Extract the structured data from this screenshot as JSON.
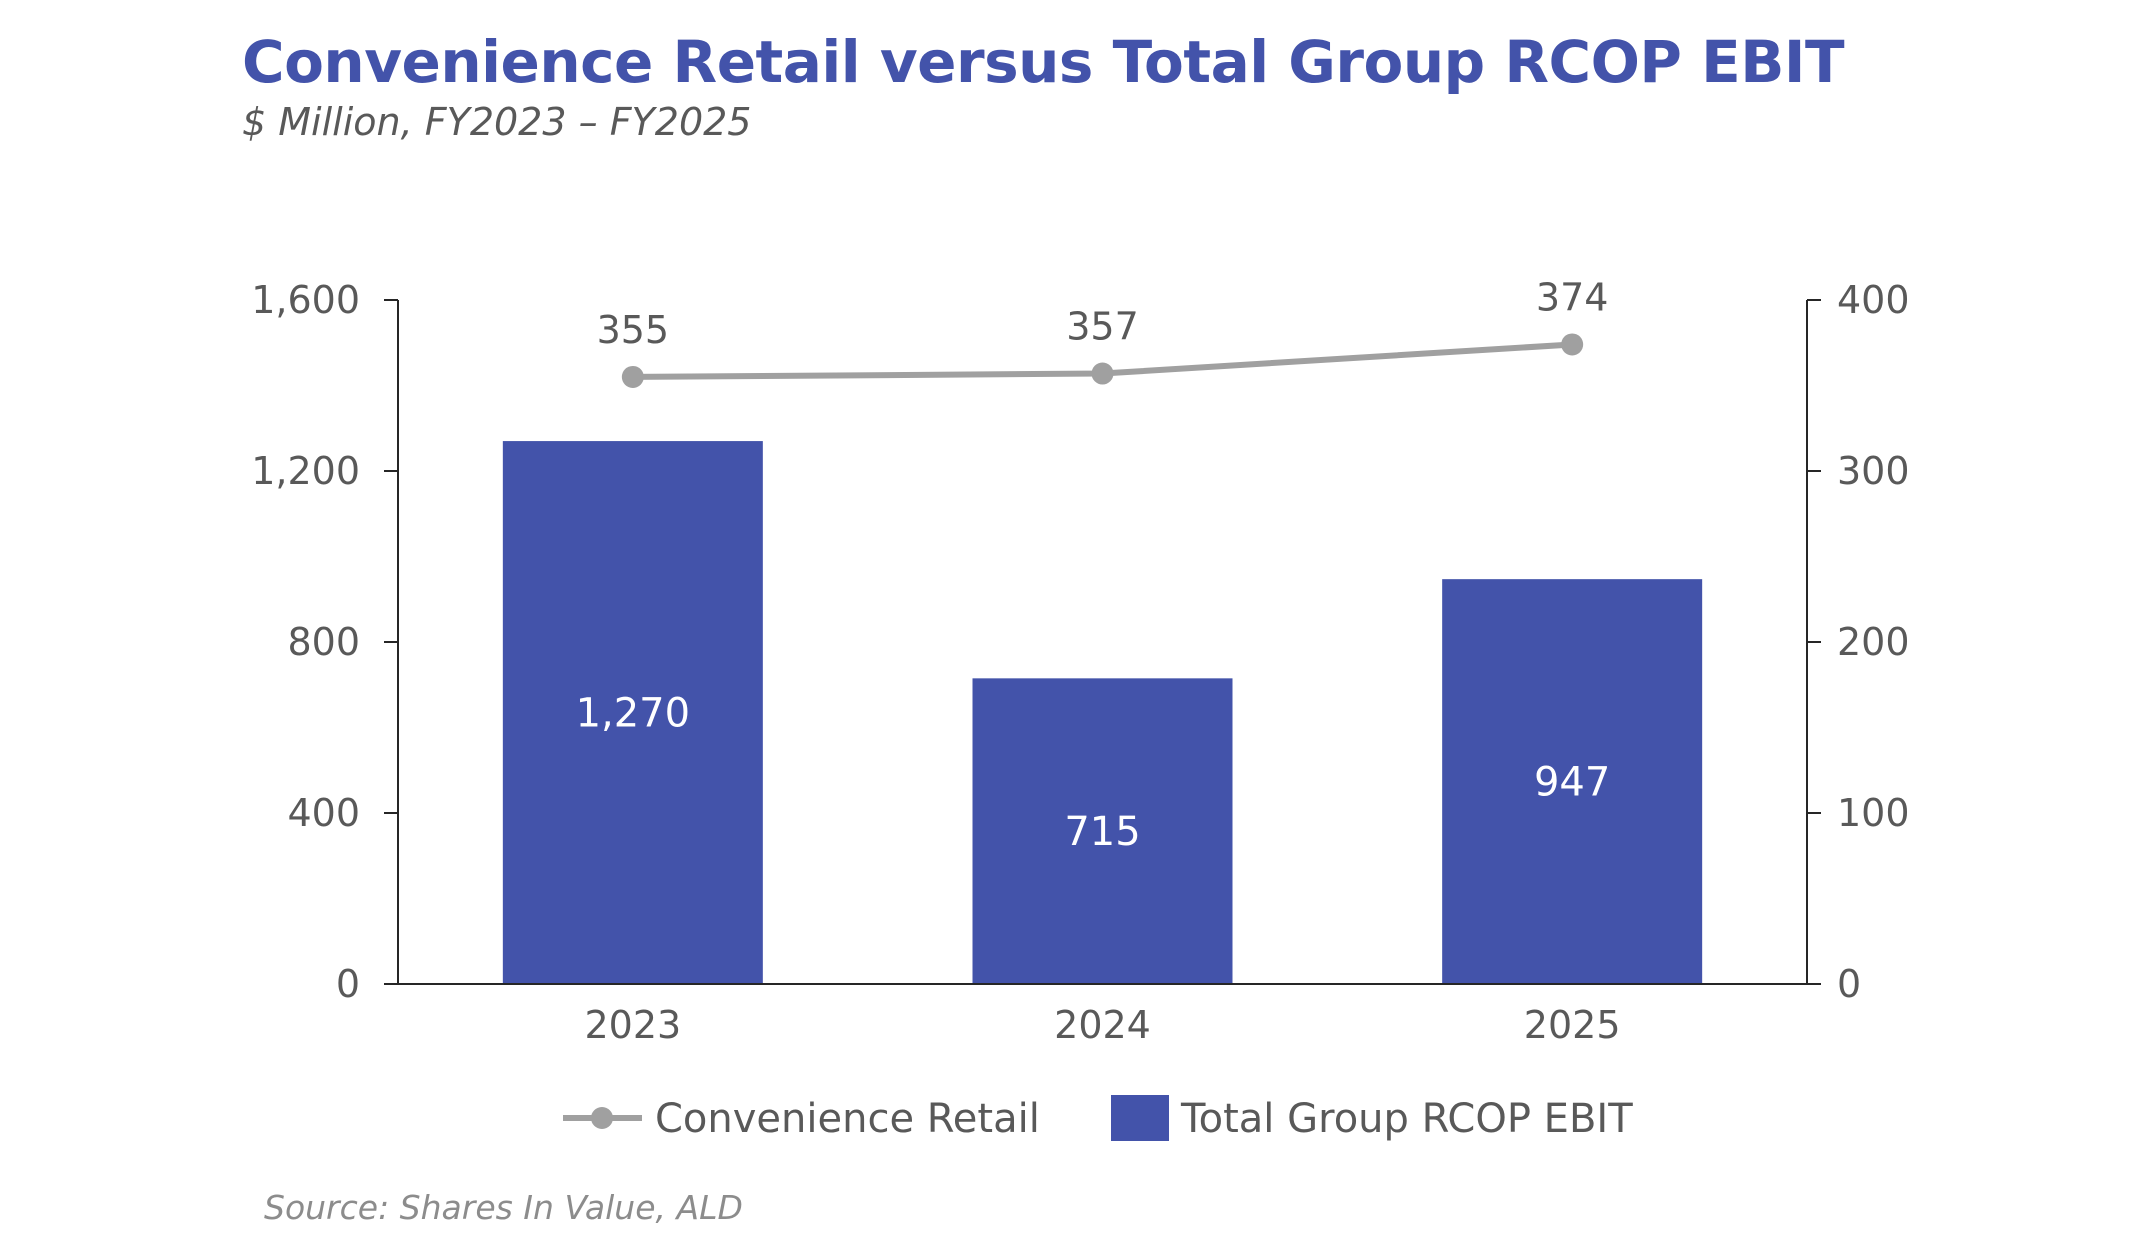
{
  "title": "Convenience Retail versus Total Group RCOP EBIT",
  "subtitle": "$ Million, FY2023 – FY2025",
  "source": "Source: Shares In Value, ALD",
  "colors": {
    "bar": "#4353aa",
    "line": "#a0a0a0",
    "title": "#4353aa",
    "axis_text": "#595959",
    "bar_label": "#ffffff"
  },
  "chart_data": {
    "type": "bar",
    "categories": [
      "2023",
      "2024",
      "2025"
    ],
    "series": [
      {
        "name": "Total Group RCOP EBIT",
        "type": "bar",
        "axis": "left",
        "values": [
          1270,
          715,
          947
        ],
        "labels": [
          "1,270",
          "715",
          "947"
        ]
      },
      {
        "name": "Convenience Retail",
        "type": "line",
        "axis": "right",
        "values": [
          355,
          357,
          374
        ],
        "labels": [
          "355",
          "357",
          "374"
        ]
      }
    ],
    "y_left": {
      "lim": [
        0,
        1600
      ],
      "ticks": [
        0,
        400,
        800,
        1200,
        1600
      ],
      "tick_labels": [
        "0",
        "400",
        "800",
        "1,200",
        "1,600"
      ]
    },
    "y_right": {
      "lim": [
        0,
        400
      ],
      "ticks": [
        0,
        100,
        200,
        300,
        400
      ],
      "tick_labels": [
        "0",
        "100",
        "200",
        "300",
        "400"
      ]
    },
    "grid": false,
    "legend": {
      "position": "bottom",
      "items": [
        "Convenience Retail",
        "Total Group RCOP EBIT"
      ]
    }
  }
}
